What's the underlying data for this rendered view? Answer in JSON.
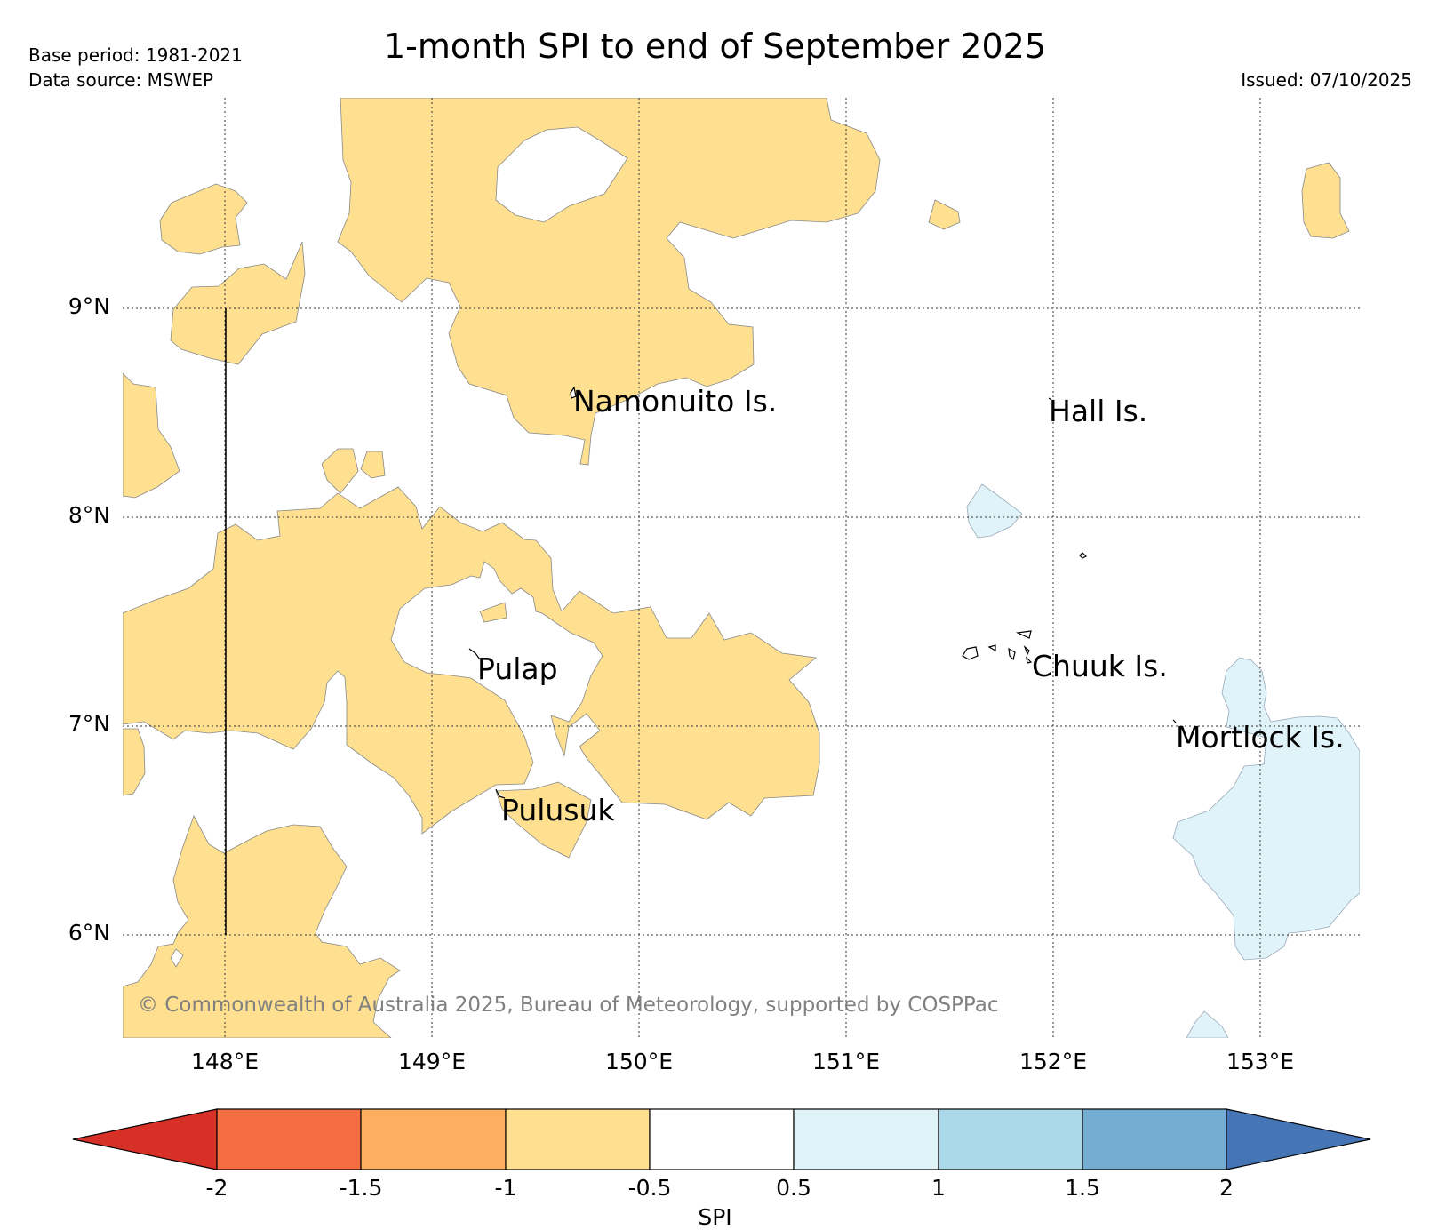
{
  "header": {
    "title": "1-month SPI to end of September 2025",
    "base_period": "Base period: 1981-2021",
    "data_source": "Data source: MSWEP",
    "issued": "Issued: 07/10/2025"
  },
  "map": {
    "lat_ticks": [
      "9°N",
      "8°N",
      "7°N",
      "6°N"
    ],
    "lon_ticks": [
      "148°E",
      "149°E",
      "150°E",
      "151°E",
      "152°E",
      "153°E"
    ],
    "lon_range": [
      147.5,
      153.5
    ],
    "lat_range": [
      5.5,
      10.0
    ],
    "places": [
      {
        "name": "Namonuito Is.",
        "lon": 149.68,
        "lat": 8.58
      },
      {
        "name": "Hall Is.",
        "lon": 151.98,
        "lat": 8.62
      },
      {
        "name": "Pulap",
        "lon": 149.22,
        "lat": 7.35
      },
      {
        "name": "Chuuk Is.",
        "lon": 151.85,
        "lat": 7.35
      },
      {
        "name": "Mortlock Is.",
        "lon": 152.6,
        "lat": 7.0
      },
      {
        "name": "Pulusuk",
        "lon": 149.3,
        "lat": 6.68
      }
    ],
    "copyright": "© Commonwealth of Australia 2025, Bureau of Meteorology, supported by COSPPac"
  },
  "colorbar": {
    "label": "SPI",
    "ticks": [
      "-2",
      "-1.5",
      "-1",
      "-0.5",
      "0.5",
      "1",
      "1.5",
      "2"
    ],
    "colors": {
      "extreme_dry": "#d73027",
      "very_dry": "#f46d43",
      "dry": "#fdae61",
      "mild_dry": "#fee090",
      "normal": "#ffffff",
      "mild_wet": "#e0f3f8",
      "wet": "#abd9e9",
      "very_wet": "#74add1",
      "extreme_wet": "#4575b4"
    }
  }
}
